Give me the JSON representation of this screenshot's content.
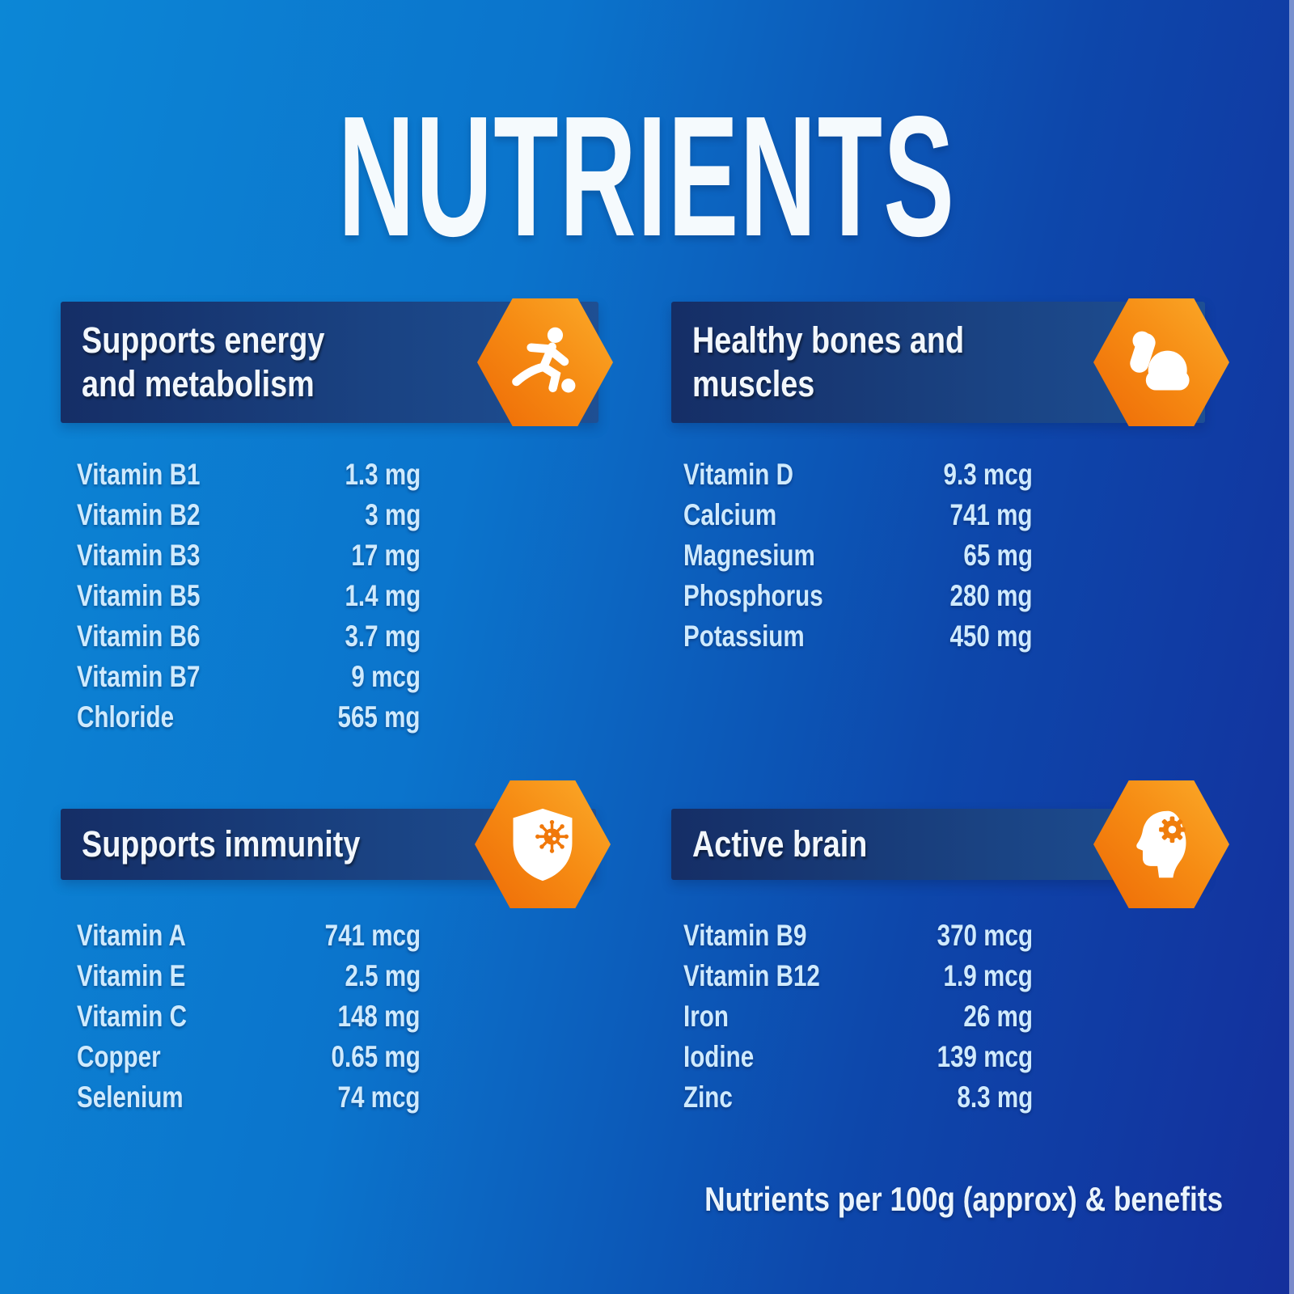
{
  "title": "NUTRIENTS",
  "footer": "Nutrients per 100g (approx) & benefits",
  "sections": [
    {
      "title_lines": [
        "Supports energy",
        "and metabolism"
      ],
      "icon": "running-person-icon",
      "nutrients": [
        {
          "name": "Vitamin B1",
          "value": "1.3 mg"
        },
        {
          "name": "Vitamin B2",
          "value": "3 mg"
        },
        {
          "name": "Vitamin B3",
          "value": "17 mg"
        },
        {
          "name": "Vitamin B5",
          "value": "1.4 mg"
        },
        {
          "name": "Vitamin B6",
          "value": "3.7 mg"
        },
        {
          "name": "Vitamin B7",
          "value": "9 mcg"
        },
        {
          "name": "Chloride",
          "value": "565 mg"
        }
      ]
    },
    {
      "title_lines": [
        "Healthy bones and",
        "muscles"
      ],
      "icon": "flexed-bicep-icon",
      "nutrients": [
        {
          "name": "Vitamin D",
          "value": "9.3 mcg"
        },
        {
          "name": "Calcium",
          "value": "741 mg"
        },
        {
          "name": "Magnesium",
          "value": "65 mg"
        },
        {
          "name": "Phosphorus",
          "value": "280 mg"
        },
        {
          "name": "Potassium",
          "value": "450 mg"
        }
      ]
    },
    {
      "title_lines": [
        "Supports immunity"
      ],
      "icon": "shield-virus-icon",
      "nutrients": [
        {
          "name": "Vitamin A",
          "value": "741 mcg"
        },
        {
          "name": "Vitamin E",
          "value": "2.5 mg"
        },
        {
          "name": "Vitamin C",
          "value": "148 mg"
        },
        {
          "name": "Copper",
          "value": "0.65 mg"
        },
        {
          "name": "Selenium",
          "value": "74 mcg"
        }
      ]
    },
    {
      "title_lines": [
        "Active brain"
      ],
      "icon": "head-gear-icon",
      "nutrients": [
        {
          "name": "Vitamin B9",
          "value": "370 mcg"
        },
        {
          "name": "Vitamin B12",
          "value": "1.9 mcg"
        },
        {
          "name": "Iron",
          "value": "26 mg"
        },
        {
          "name": "Iodine",
          "value": "139 mcg"
        },
        {
          "name": "Zinc",
          "value": "8.3 mg"
        }
      ]
    }
  ],
  "colors": {
    "background_top_left": "#0c87d6",
    "background_bottom_right": "#142f9c",
    "header_bar_left": "#152e66",
    "header_bar_right": "#1e4f93",
    "hexagon_dark_orange": "#ee6a06",
    "hexagon_light_orange": "#fbab2a",
    "heading_text": "#f2f7fc",
    "list_text": "#cfeafd",
    "title_text": "#f5fafd"
  }
}
